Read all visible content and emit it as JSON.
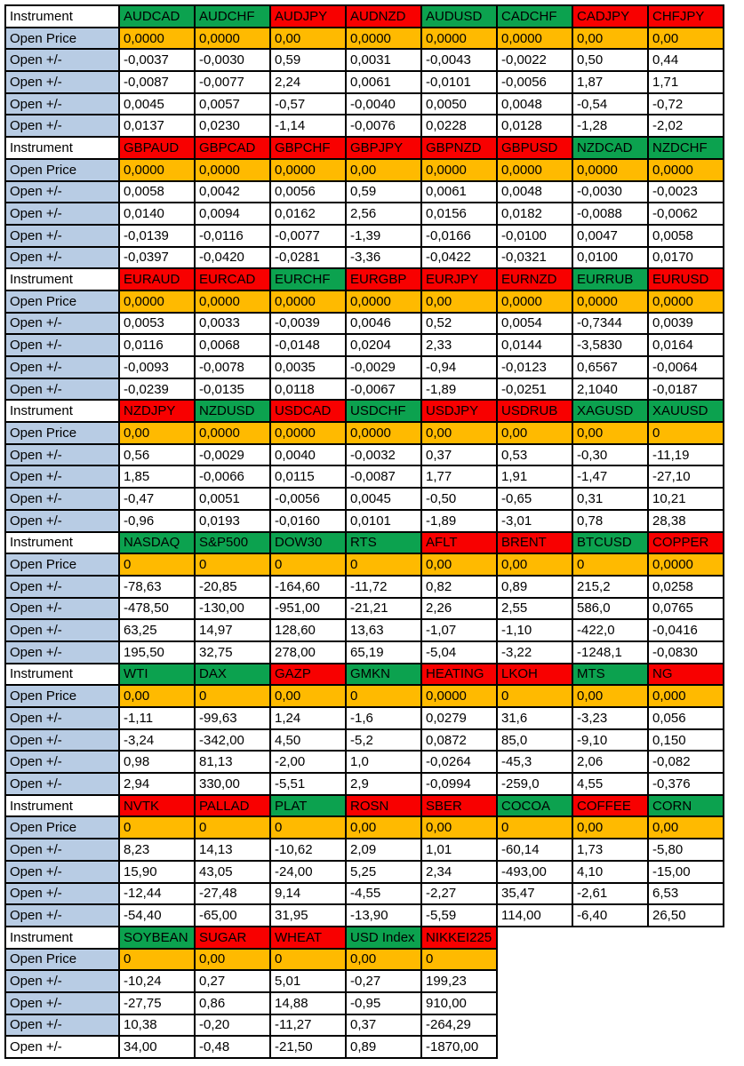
{
  "labels": {
    "instrument": "Instrument",
    "open_price": "Open Price",
    "open_delta": "Open +/-"
  },
  "colors": {
    "green": "#0ca24f",
    "red": "#f80000",
    "orange": "#ffba00",
    "blue": "#b8cce4"
  },
  "blocks": [
    {
      "instruments": [
        {
          "name": "AUDCAD",
          "trend": "green"
        },
        {
          "name": "AUDCHF",
          "trend": "green"
        },
        {
          "name": "AUDJPY",
          "trend": "red"
        },
        {
          "name": "AUDNZD",
          "trend": "red"
        },
        {
          "name": "AUDUSD",
          "trend": "green"
        },
        {
          "name": "CADCHF",
          "trend": "green"
        },
        {
          "name": "CADJPY",
          "trend": "red"
        },
        {
          "name": "CHFJPY",
          "trend": "red"
        }
      ],
      "open_prices": [
        "0,0000",
        "0,0000",
        "0,00",
        "0,0000",
        "0,0000",
        "0,0000",
        "0,00",
        "0,00"
      ],
      "delta_rows": [
        [
          "-0,0037",
          "-0,0030",
          "0,59",
          "0,0031",
          "-0,0043",
          "-0,0022",
          "0,50",
          "0,44"
        ],
        [
          "-0,0087",
          "-0,0077",
          "2,24",
          "0,0061",
          "-0,0101",
          "-0,0056",
          "1,87",
          "1,71"
        ],
        [
          "0,0045",
          "0,0057",
          "-0,57",
          "-0,0040",
          "0,0050",
          "0,0048",
          "-0,54",
          "-0,72"
        ],
        [
          "0,0137",
          "0,0230",
          "-1,14",
          "-0,0076",
          "0,0228",
          "0,0128",
          "-1,28",
          "-2,02"
        ]
      ]
    },
    {
      "instruments": [
        {
          "name": "GBPAUD",
          "trend": "red"
        },
        {
          "name": "GBPCAD",
          "trend": "red"
        },
        {
          "name": "GBPCHF",
          "trend": "red"
        },
        {
          "name": "GBPJPY",
          "trend": "red"
        },
        {
          "name": "GBPNZD",
          "trend": "red"
        },
        {
          "name": "GBPUSD",
          "trend": "red"
        },
        {
          "name": "NZDCAD",
          "trend": "green"
        },
        {
          "name": "NZDCHF",
          "trend": "green"
        }
      ],
      "open_prices": [
        "0,0000",
        "0,0000",
        "0,0000",
        "0,00",
        "0,0000",
        "0,0000",
        "0,0000",
        "0,0000"
      ],
      "delta_rows": [
        [
          "0,0058",
          "0,0042",
          "0,0056",
          "0,59",
          "0,0061",
          "0,0048",
          "-0,0030",
          "-0,0023"
        ],
        [
          "0,0140",
          "0,0094",
          "0,0162",
          "2,56",
          "0,0156",
          "0,0182",
          "-0,0088",
          "-0,0062"
        ],
        [
          "-0,0139",
          "-0,0116",
          "-0,0077",
          "-1,39",
          "-0,0166",
          "-0,0100",
          "0,0047",
          "0,0058"
        ],
        [
          "-0,0397",
          "-0,0420",
          "-0,0281",
          "-3,36",
          "-0,0422",
          "-0,0321",
          "0,0100",
          "0,0170"
        ]
      ]
    },
    {
      "instruments": [
        {
          "name": "EURAUD",
          "trend": "red"
        },
        {
          "name": "EURCAD",
          "trend": "red"
        },
        {
          "name": "EURCHF",
          "trend": "green"
        },
        {
          "name": "EURGBP",
          "trend": "red"
        },
        {
          "name": "EURJPY",
          "trend": "red"
        },
        {
          "name": "EURNZD",
          "trend": "red"
        },
        {
          "name": "EURRUB",
          "trend": "green"
        },
        {
          "name": "EURUSD",
          "trend": "red"
        }
      ],
      "open_prices": [
        "0,0000",
        "0,0000",
        "0,0000",
        "0,0000",
        "0,00",
        "0,0000",
        "0,0000",
        "0,0000"
      ],
      "delta_rows": [
        [
          "0,0053",
          "0,0033",
          "-0,0039",
          "0,0046",
          "0,52",
          "0,0054",
          "-0,7344",
          "0,0039"
        ],
        [
          "0,0116",
          "0,0068",
          "-0,0148",
          "0,0204",
          "2,33",
          "0,0144",
          "-3,5830",
          "0,0164"
        ],
        [
          "-0,0093",
          "-0,0078",
          "0,0035",
          "-0,0029",
          "-0,94",
          "-0,0123",
          "0,6567",
          "-0,0064"
        ],
        [
          "-0,0239",
          "-0,0135",
          "0,0118",
          "-0,0067",
          "-1,89",
          "-0,0251",
          "2,1040",
          "-0,0187"
        ]
      ]
    },
    {
      "instruments": [
        {
          "name": "NZDJPY",
          "trend": "red"
        },
        {
          "name": "NZDUSD",
          "trend": "green"
        },
        {
          "name": "USDCAD",
          "trend": "red"
        },
        {
          "name": "USDCHF",
          "trend": "green"
        },
        {
          "name": "USDJPY",
          "trend": "red"
        },
        {
          "name": "USDRUB",
          "trend": "red"
        },
        {
          "name": "XAGUSD",
          "trend": "green"
        },
        {
          "name": "XAUUSD",
          "trend": "green"
        }
      ],
      "open_prices": [
        "0,00",
        "0,0000",
        "0,0000",
        "0,0000",
        "0,00",
        "0,00",
        "0,00",
        "0"
      ],
      "delta_rows": [
        [
          "0,56",
          "-0,0029",
          "0,0040",
          "-0,0032",
          "0,37",
          "0,53",
          "-0,30",
          "-11,19"
        ],
        [
          "1,85",
          "-0,0066",
          "0,0115",
          "-0,0087",
          "1,77",
          "1,91",
          "-1,47",
          "-27,10"
        ],
        [
          "-0,47",
          "0,0051",
          "-0,0056",
          "0,0045",
          "-0,50",
          "-0,65",
          "0,31",
          "10,21"
        ],
        [
          "-0,96",
          "0,0193",
          "-0,0160",
          "0,0101",
          "-1,89",
          "-3,01",
          "0,78",
          "28,38"
        ]
      ]
    },
    {
      "instruments": [
        {
          "name": "NASDAQ",
          "trend": "green"
        },
        {
          "name": "S&P500",
          "trend": "green"
        },
        {
          "name": "DOW30",
          "trend": "green"
        },
        {
          "name": "RTS",
          "trend": "green"
        },
        {
          "name": "AFLT",
          "trend": "red"
        },
        {
          "name": "BRENT",
          "trend": "red"
        },
        {
          "name": "BTCUSD",
          "trend": "green"
        },
        {
          "name": "COPPER",
          "trend": "red"
        }
      ],
      "open_prices": [
        "0",
        "0",
        "0",
        "0",
        "0,00",
        "0,00",
        "0",
        "0,0000"
      ],
      "delta_rows": [
        [
          "-78,63",
          "-20,85",
          "-164,60",
          "-11,72",
          "0,82",
          "0,89",
          "215,2",
          "0,0258"
        ],
        [
          "-478,50",
          "-130,00",
          "-951,00",
          "-21,21",
          "2,26",
          "2,55",
          "586,0",
          "0,0765"
        ],
        [
          "63,25",
          "14,97",
          "128,60",
          "13,63",
          "-1,07",
          "-1,10",
          "-422,0",
          "-0,0416"
        ],
        [
          "195,50",
          "32,75",
          "278,00",
          "65,19",
          "-5,04",
          "-3,22",
          "-1248,1",
          "-0,0830"
        ]
      ]
    },
    {
      "instruments": [
        {
          "name": "WTI",
          "trend": "green"
        },
        {
          "name": "DAX",
          "trend": "green"
        },
        {
          "name": "GAZP",
          "trend": "red"
        },
        {
          "name": "GMKN",
          "trend": "green"
        },
        {
          "name": "HEATING",
          "trend": "red"
        },
        {
          "name": "LKOH",
          "trend": "red"
        },
        {
          "name": "MTS",
          "trend": "green"
        },
        {
          "name": "NG",
          "trend": "red"
        }
      ],
      "open_prices": [
        "0,00",
        "0",
        "0,00",
        "0",
        "0,0000",
        "0",
        "0,00",
        "0,000"
      ],
      "delta_rows": [
        [
          "-1,11",
          "-99,63",
          "1,24",
          "-1,6",
          "0,0279",
          "31,6",
          "-3,23",
          "0,056"
        ],
        [
          "-3,24",
          "-342,00",
          "4,50",
          "-5,2",
          "0,0872",
          "85,0",
          "-9,10",
          "0,150"
        ],
        [
          "0,98",
          "81,13",
          "-2,00",
          "1,0",
          "-0,0264",
          "-45,3",
          "2,06",
          "-0,082"
        ],
        [
          "2,94",
          "330,00",
          "-5,51",
          "2,9",
          "-0,0994",
          "-259,0",
          "4,55",
          "-0,376"
        ]
      ]
    },
    {
      "instruments": [
        {
          "name": "NVTK",
          "trend": "red"
        },
        {
          "name": "PALLAD",
          "trend": "red"
        },
        {
          "name": "PLAT",
          "trend": "green"
        },
        {
          "name": "ROSN",
          "trend": "red"
        },
        {
          "name": "SBER",
          "trend": "red"
        },
        {
          "name": "COCOA",
          "trend": "green"
        },
        {
          "name": "COFFEE",
          "trend": "red"
        },
        {
          "name": "CORN",
          "trend": "green"
        }
      ],
      "open_prices": [
        "0",
        "0",
        "0",
        "0,00",
        "0,00",
        "0",
        "0,00",
        "0,00"
      ],
      "delta_rows": [
        [
          "8,23",
          "14,13",
          "-10,62",
          "2,09",
          "1,01",
          "-60,14",
          "1,73",
          "-5,80"
        ],
        [
          "15,90",
          "43,05",
          "-24,00",
          "5,25",
          "2,34",
          "-493,00",
          "4,10",
          "-15,00"
        ],
        [
          "-12,44",
          "-27,48",
          "9,14",
          "-4,55",
          "-2,27",
          "35,47",
          "-2,61",
          "6,53"
        ],
        [
          "-54,40",
          "-65,00",
          "31,95",
          "-13,90",
          "-5,59",
          "114,00",
          "-6,40",
          "26,50"
        ]
      ]
    },
    {
      "instruments": [
        {
          "name": "SOYBEAN",
          "trend": "green"
        },
        {
          "name": "SUGAR",
          "trend": "red"
        },
        {
          "name": "WHEAT",
          "trend": "red"
        },
        {
          "name": "USD Index",
          "trend": "green"
        },
        {
          "name": "NIKKEI225",
          "trend": "red"
        }
      ],
      "open_prices": [
        "0",
        "0,00",
        "0",
        "0,00",
        "0"
      ],
      "delta_rows": [
        [
          "-10,24",
          "0,27",
          "5,01",
          "-0,27",
          "199,23"
        ],
        [
          "-27,75",
          "0,86",
          "14,88",
          "-0,95",
          "910,00"
        ],
        [
          "10,38",
          "-0,20",
          "-11,27",
          "0,37",
          "-264,29"
        ],
        [
          "34,00",
          "-0,48",
          "-21,50",
          "0,89",
          "-1870,00"
        ]
      ]
    }
  ]
}
